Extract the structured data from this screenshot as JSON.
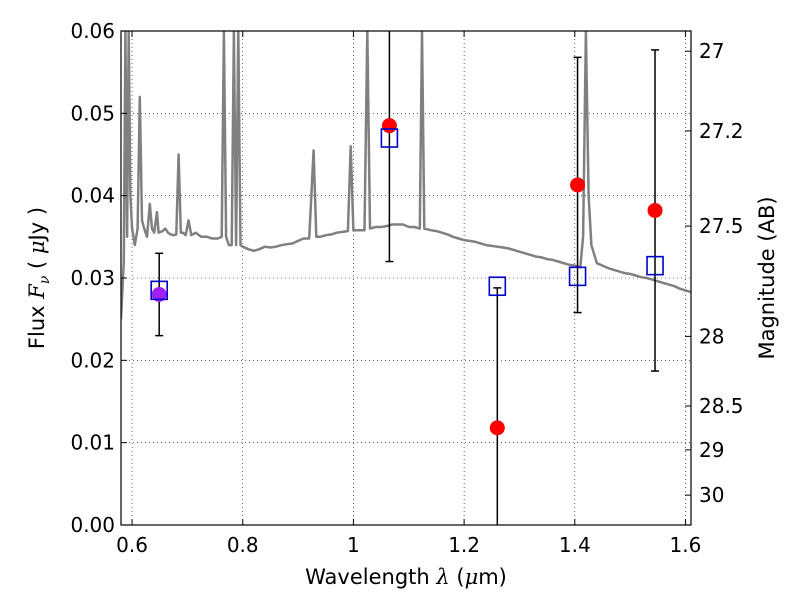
{
  "chart_data": {
    "type": "scatter",
    "xlabel": {
      "pre": "Wavelength ",
      "sym": "λ",
      "mid": " (",
      "mu": "μ",
      "post": "m)"
    },
    "ylabel": {
      "pre": "Flux ",
      "sym": "F",
      "sub": "ν",
      "mid": " ( ",
      "mu": "μ",
      "post": "Jy )"
    },
    "y2label": "Magnitude (AB)",
    "xlim": [
      0.58,
      1.61
    ],
    "ylim": [
      0.0,
      0.06
    ],
    "grid": true,
    "x_ticks": [
      {
        "v": 0.6,
        "label": "0.6"
      },
      {
        "v": 0.8,
        "label": "0.8"
      },
      {
        "v": 1.0,
        "label": "1"
      },
      {
        "v": 1.2,
        "label": "1.2"
      },
      {
        "v": 1.4,
        "label": "1.4"
      },
      {
        "v": 1.6,
        "label": "1.6"
      }
    ],
    "y_ticks": [
      {
        "v": 0.0,
        "label": "0.00"
      },
      {
        "v": 0.01,
        "label": "0.01"
      },
      {
        "v": 0.02,
        "label": "0.02"
      },
      {
        "v": 0.03,
        "label": "0.03"
      },
      {
        "v": 0.04,
        "label": "0.04"
      },
      {
        "v": 0.05,
        "label": "0.05"
      },
      {
        "v": 0.06,
        "label": "0.06"
      }
    ],
    "y2_ticks": [
      {
        "mag": 27,
        "label": "27"
      },
      {
        "mag": 27.2,
        "label": "27.2"
      },
      {
        "mag": 27.5,
        "label": "27.5"
      },
      {
        "mag": 28,
        "label": "28"
      },
      {
        "mag": 28.5,
        "label": "28.5"
      },
      {
        "mag": 29,
        "label": "29"
      },
      {
        "mag": 30,
        "label": "30"
      }
    ],
    "model_spectrum": {
      "color": "#808080",
      "points": [
        [
          0.58,
          0.025
        ],
        [
          0.585,
          0.032
        ],
        [
          0.588,
          0.06
        ],
        [
          0.591,
          0.035
        ],
        [
          0.594,
          0.06
        ],
        [
          0.597,
          0.04
        ],
        [
          0.6,
          0.036
        ],
        [
          0.605,
          0.034
        ],
        [
          0.61,
          0.036
        ],
        [
          0.614,
          0.052
        ],
        [
          0.618,
          0.037
        ],
        [
          0.622,
          0.036
        ],
        [
          0.627,
          0.035
        ],
        [
          0.632,
          0.039
        ],
        [
          0.636,
          0.036
        ],
        [
          0.64,
          0.0355
        ],
        [
          0.645,
          0.038
        ],
        [
          0.648,
          0.0355
        ],
        [
          0.655,
          0.0357
        ],
        [
          0.66,
          0.036
        ],
        [
          0.665,
          0.0355
        ],
        [
          0.67,
          0.0353
        ],
        [
          0.675,
          0.0352
        ],
        [
          0.68,
          0.0353
        ],
        [
          0.684,
          0.045
        ],
        [
          0.688,
          0.0355
        ],
        [
          0.692,
          0.0355
        ],
        [
          0.697,
          0.0352
        ],
        [
          0.702,
          0.037
        ],
        [
          0.707,
          0.0352
        ],
        [
          0.715,
          0.0355
        ],
        [
          0.725,
          0.035
        ],
        [
          0.735,
          0.035
        ],
        [
          0.745,
          0.0348
        ],
        [
          0.755,
          0.0348
        ],
        [
          0.762,
          0.035
        ],
        [
          0.766,
          0.06
        ],
        [
          0.77,
          0.035
        ],
        [
          0.775,
          0.034
        ],
        [
          0.78,
          0.034
        ],
        [
          0.784,
          0.06
        ],
        [
          0.788,
          0.034
        ],
        [
          0.792,
          0.06
        ],
        [
          0.796,
          0.034
        ],
        [
          0.8,
          0.0338
        ],
        [
          0.81,
          0.0335
        ],
        [
          0.82,
          0.0333
        ],
        [
          0.83,
          0.0335
        ],
        [
          0.84,
          0.0338
        ],
        [
          0.85,
          0.0337
        ],
        [
          0.86,
          0.0338
        ],
        [
          0.87,
          0.034
        ],
        [
          0.88,
          0.0341
        ],
        [
          0.89,
          0.0342
        ],
        [
          0.9,
          0.0345
        ],
        [
          0.91,
          0.0348
        ],
        [
          0.92,
          0.0348
        ],
        [
          0.928,
          0.0455
        ],
        [
          0.933,
          0.035
        ],
        [
          0.94,
          0.035
        ],
        [
          0.95,
          0.0352
        ],
        [
          0.96,
          0.0353
        ],
        [
          0.97,
          0.0355
        ],
        [
          0.98,
          0.0356
        ],
        [
          0.99,
          0.0357
        ],
        [
          0.995,
          0.046
        ],
        [
          1.0,
          0.0358
        ],
        [
          1.01,
          0.0358
        ],
        [
          1.02,
          0.0358
        ],
        [
          1.025,
          0.06
        ],
        [
          1.03,
          0.036
        ],
        [
          1.04,
          0.0362
        ],
        [
          1.05,
          0.0362
        ],
        [
          1.06,
          0.0363
        ],
        [
          1.07,
          0.0365
        ],
        [
          1.08,
          0.0365
        ],
        [
          1.09,
          0.0365
        ],
        [
          1.1,
          0.0362
        ],
        [
          1.11,
          0.0362
        ],
        [
          1.12,
          0.036
        ],
        [
          1.124,
          0.06
        ],
        [
          1.128,
          0.036
        ],
        [
          1.14,
          0.0358
        ],
        [
          1.15,
          0.0357
        ],
        [
          1.16,
          0.0355
        ],
        [
          1.17,
          0.0353
        ],
        [
          1.18,
          0.035
        ],
        [
          1.19,
          0.0348
        ],
        [
          1.2,
          0.0346
        ],
        [
          1.21,
          0.0345
        ],
        [
          1.22,
          0.0344
        ],
        [
          1.23,
          0.0342
        ],
        [
          1.24,
          0.034
        ],
        [
          1.25,
          0.0339
        ],
        [
          1.26,
          0.0338
        ],
        [
          1.27,
          0.0337
        ],
        [
          1.28,
          0.0336
        ],
        [
          1.29,
          0.0334
        ],
        [
          1.3,
          0.0332
        ],
        [
          1.31,
          0.033
        ],
        [
          1.32,
          0.0328
        ],
        [
          1.33,
          0.0326
        ],
        [
          1.34,
          0.0325
        ],
        [
          1.35,
          0.0323
        ],
        [
          1.36,
          0.0322
        ],
        [
          1.37,
          0.032
        ],
        [
          1.38,
          0.0318
        ],
        [
          1.39,
          0.0316
        ],
        [
          1.4,
          0.0315
        ],
        [
          1.41,
          0.0313
        ],
        [
          1.415,
          0.035
        ],
        [
          1.42,
          0.06
        ],
        [
          1.425,
          0.04
        ],
        [
          1.43,
          0.034
        ],
        [
          1.44,
          0.0318
        ],
        [
          1.45,
          0.0315
        ],
        [
          1.46,
          0.0312
        ],
        [
          1.47,
          0.031
        ],
        [
          1.48,
          0.0308
        ],
        [
          1.49,
          0.0306
        ],
        [
          1.5,
          0.0305
        ],
        [
          1.51,
          0.0303
        ],
        [
          1.52,
          0.0301
        ],
        [
          1.53,
          0.03
        ],
        [
          1.54,
          0.0298
        ],
        [
          1.55,
          0.0296
        ],
        [
          1.56,
          0.0294
        ],
        [
          1.57,
          0.0292
        ],
        [
          1.58,
          0.029
        ],
        [
          1.59,
          0.0287
        ],
        [
          1.6,
          0.0285
        ],
        [
          1.61,
          0.0283
        ]
      ]
    },
    "series": [
      {
        "marker": "circle",
        "color": "#ff0000",
        "points": [
          {
            "x": 0.649,
            "y": 0.028,
            "err": 0.005,
            "color": "#a020f0"
          },
          {
            "x": 1.065,
            "y": 0.0485,
            "err": 0.0165
          },
          {
            "x": 1.26,
            "y": 0.0118,
            "err": 0.017
          },
          {
            "x": 1.405,
            "y": 0.0413,
            "err": 0.0155
          },
          {
            "x": 1.545,
            "y": 0.0382,
            "err": 0.0195
          }
        ]
      },
      {
        "marker": "open-square",
        "color": "#0000cc",
        "points": [
          {
            "x": 0.649,
            "y": 0.0285
          },
          {
            "x": 1.065,
            "y": 0.047
          },
          {
            "x": 1.26,
            "y": 0.029
          },
          {
            "x": 1.405,
            "y": 0.0302
          },
          {
            "x": 1.545,
            "y": 0.0315
          }
        ]
      }
    ]
  }
}
